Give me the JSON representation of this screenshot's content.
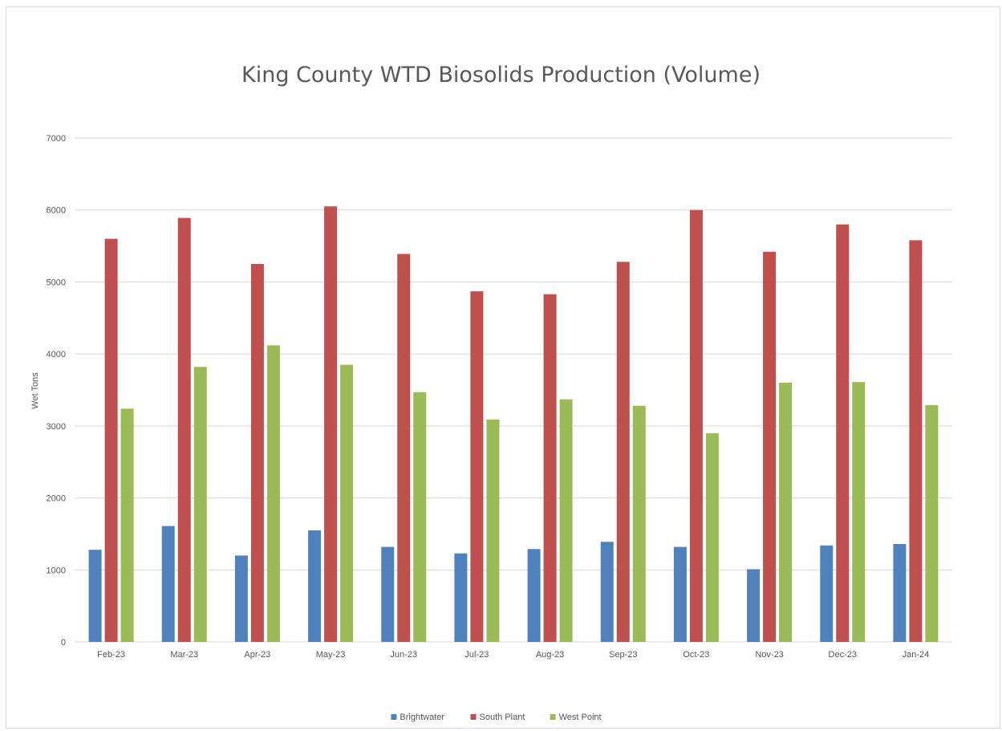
{
  "chart_data": {
    "type": "bar",
    "title": "King County WTD Biosolids Production (Volume)",
    "xlabel": "",
    "ylabel": "Wet Tons",
    "ylim": [
      0,
      7000
    ],
    "yticks": [
      0,
      1000,
      2000,
      3000,
      4000,
      5000,
      6000,
      7000
    ],
    "grid": true,
    "legend_position": "bottom",
    "categories": [
      "Feb-23",
      "Mar-23",
      "Apr-23",
      "May-23",
      "Jun-23",
      "Jul-23",
      "Aug-23",
      "Sep-23",
      "Oct-23",
      "Nov-23",
      "Dec-23",
      "Jan-24"
    ],
    "series": [
      {
        "name": "Brightwater",
        "color": "#4f81bd",
        "values": [
          1280,
          1610,
          1200,
          1550,
          1320,
          1230,
          1290,
          1390,
          1320,
          1010,
          1340,
          1360
        ]
      },
      {
        "name": "South Plant",
        "color": "#c0504d",
        "values": [
          5600,
          5890,
          5250,
          6050,
          5390,
          4870,
          4830,
          5280,
          6000,
          5420,
          5800,
          5580
        ]
      },
      {
        "name": "West Point",
        "color": "#9bbb59",
        "values": [
          3240,
          3820,
          4120,
          3850,
          3470,
          3090,
          3370,
          3280,
          2900,
          3600,
          3610,
          3290
        ]
      }
    ]
  }
}
